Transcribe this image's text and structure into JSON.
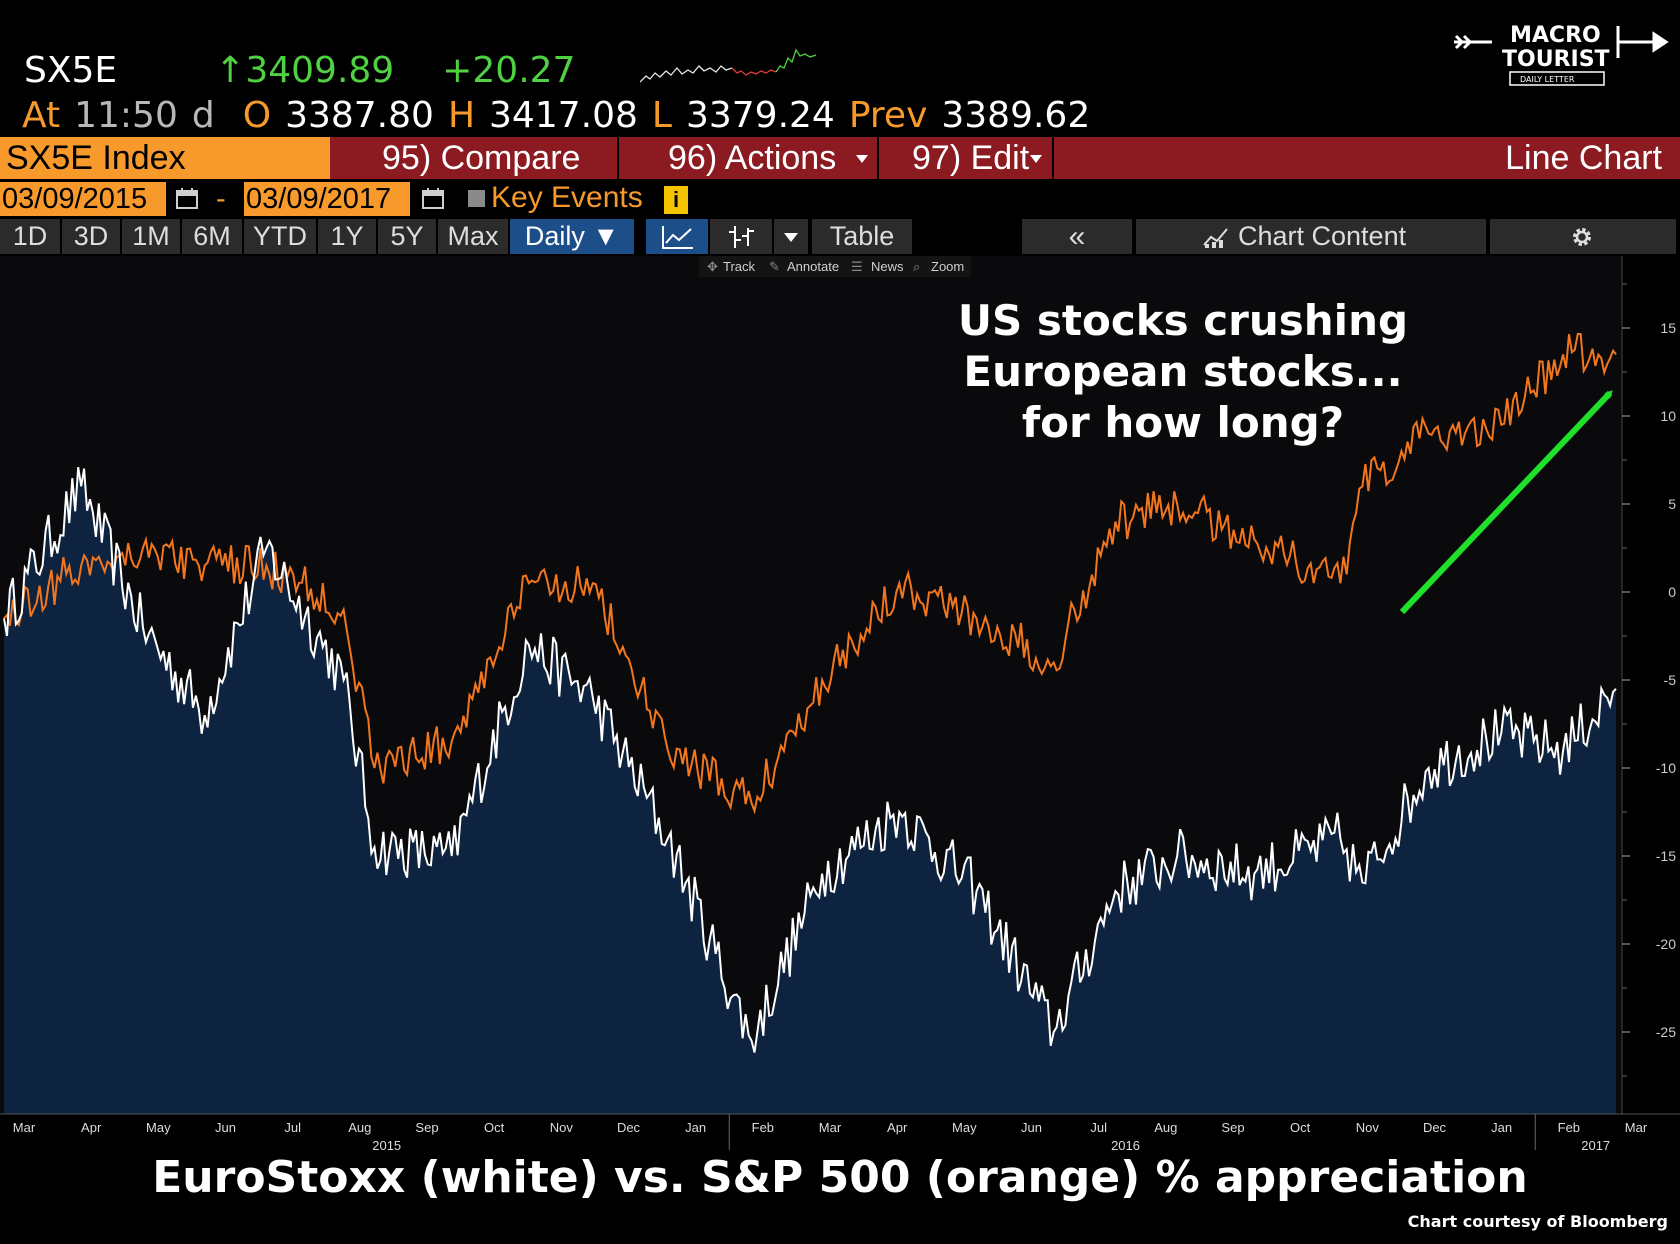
{
  "quote": {
    "ticker": "SX5E",
    "arrow": "↑",
    "last": "3409.89",
    "change": "+20.27",
    "at_label": "At",
    "time": "11:50",
    "time_suffix": "d",
    "open_label": "O",
    "open": "3387.80",
    "high_label": "H",
    "high": "3417.08",
    "low_label": "L",
    "low": "3379.24",
    "prev_label": "Prev",
    "prev": "3389.62"
  },
  "logo": {
    "line1": "MACRO",
    "line2": "TOURIST",
    "line3": "DAILY LETTER"
  },
  "toolbar": {
    "security": "SX5E Index",
    "compare": "95) Compare",
    "actions": "96) Actions",
    "edit": "97) Edit",
    "view": "Line Chart"
  },
  "dates": {
    "start": "03/09/2015",
    "sep": "-",
    "end": "03/09/2017",
    "key_events": "Key Events",
    "info": "i"
  },
  "ranges": [
    "1D",
    "3D",
    "1M",
    "6M",
    "YTD",
    "1Y",
    "5Y",
    "Max"
  ],
  "frequency": "Daily ▼",
  "tools": {
    "table": "Table",
    "collapse": "«",
    "chart_content": "Chart Content"
  },
  "subtools": {
    "track": "Track",
    "annotate": "Annotate",
    "news": "News",
    "zoom": "Zoom"
  },
  "colors": {
    "eurostoxx_line": "#ffffff",
    "eurostoxx_fill": "#0d2340",
    "sp500_line": "#f2761e",
    "arrow": "#1fe02b",
    "plot_bg": "#0a0a0c",
    "bar_red": "#8b1a21",
    "bar_orange": "#f89a2b"
  },
  "chart_data": {
    "type": "line",
    "annotation": [
      "US stocks crushing",
      "European stocks...",
      "for how long?"
    ],
    "yticks": [
      15,
      10,
      5,
      0,
      -5,
      -10,
      -15,
      -20,
      -25
    ],
    "ylim": [
      -29.7,
      19
    ],
    "x_month_labels": [
      "Mar",
      "Apr",
      "May",
      "Jun",
      "Jul",
      "Aug",
      "Sep",
      "Oct",
      "Nov",
      "Dec",
      "Jan",
      "Feb",
      "Mar",
      "Apr",
      "May",
      "Jun",
      "Jul",
      "Aug",
      "Sep",
      "Oct",
      "Nov",
      "Dec",
      "Jan",
      "Feb",
      "Mar"
    ],
    "x_year_labels": [
      {
        "label": "2015",
        "month_index": 5
      },
      {
        "label": "2016",
        "month_index": 16
      },
      {
        "label": "2017",
        "month_index": 23
      }
    ],
    "x": [
      "2015-03-09",
      "2015-04-13",
      "2015-05-11",
      "2015-06-08",
      "2015-07-06",
      "2015-08-10",
      "2015-08-24",
      "2015-09-28",
      "2015-11-02",
      "2015-12-01",
      "2016-01-04",
      "2016-02-11",
      "2016-03-14",
      "2016-04-18",
      "2016-05-23",
      "2016-06-27",
      "2016-07-25",
      "2016-08-22",
      "2016-09-26",
      "2016-11-04",
      "2016-11-14",
      "2016-12-14",
      "2017-01-16",
      "2017-02-13",
      "2017-03-09"
    ],
    "series": [
      {
        "name": "EuroStoxx",
        "values": [
          -1.5,
          6,
          -2,
          -7,
          2.5,
          -5,
          -14.5,
          -15,
          -3,
          -6,
          -14,
          -25.5,
          -16,
          -12.5,
          -17,
          -25,
          -17,
          -15,
          -16,
          -14,
          -16.5,
          -10,
          -8,
          -9,
          -5.5
        ]
      },
      {
        "name": "S&P 500",
        "values": [
          -1.5,
          1.5,
          2.5,
          1.5,
          1.5,
          -1,
          -10,
          -8.5,
          0.5,
          0.5,
          -9,
          -12,
          -5,
          0.5,
          -1.5,
          -4,
          4,
          5,
          3,
          0.5,
          6,
          9,
          9.5,
          13.5,
          13.5
        ]
      }
    ],
    "title": "EuroStoxx (white) vs. S&P 500 (orange) % appreciation",
    "credit": "Chart courtesy of Bloomberg"
  }
}
